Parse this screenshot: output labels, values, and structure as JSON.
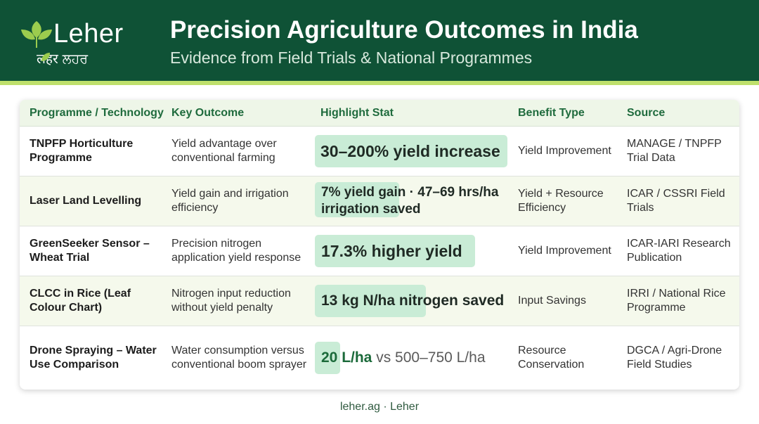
{
  "header": {
    "logo_name": "Leher",
    "logo_sub_left": "लहर",
    "logo_sub_right": "ਲਹਰ",
    "title": "Precision Agriculture Outcomes in India",
    "subtitle": "Evidence from Field Trials & National Programmes",
    "colors": {
      "band": "#0f5236",
      "accent_strip": "#bfe06c",
      "leaf": "#9ccc4e"
    }
  },
  "table": {
    "columns": [
      "Programme / Technology",
      "Key Outcome",
      "Highlight Stat",
      "Benefit Type",
      "Source"
    ],
    "rows": [
      {
        "programme": "TNPFP Horticulture Programme",
        "outcome": "Yield advantage over conventional farming",
        "stat": "30–200% yield increase",
        "benefit": "Yield Improvement",
        "source": "MANAGE / TNPFP Trial Data"
      },
      {
        "programme": "Laser Land Levelling",
        "outcome": "Yield gain and irrigation efficiency",
        "stat": "7% yield gain · 47–69 hrs/ha irrigation saved",
        "benefit": "Yield + Resource Efficiency",
        "source": "ICAR / CSSRI Field Trials"
      },
      {
        "programme": "GreenSeeker Sensor – Wheat Trial",
        "outcome": "Precision nitrogen application yield response",
        "stat": "17.3% higher yield",
        "benefit": "Yield Improvement",
        "source": "ICAR-IARI Research Publication"
      },
      {
        "programme": "CLCC in Rice (Leaf Colour Chart)",
        "outcome": "Nitrogen input reduction without yield penalty",
        "stat": "13 kg N/ha nitrogen saved",
        "benefit": "Input Savings",
        "source": "IRRI / National Rice Programme"
      },
      {
        "programme": "Drone Spraying – Water Use Comparison",
        "outcome": "Water consumption versus conventional boom sprayer",
        "stat_emphasis": "20 L/ha",
        "stat_rest": " vs 500–750 L/ha",
        "benefit": "Resource Conservation",
        "source": "DGCA / Agri-Drone Field Studies"
      }
    ],
    "colors": {
      "header_text": "#1f6b3d",
      "highlight": "#c9ecd6",
      "alt_row": "#f5f9ec"
    }
  },
  "footer": {
    "text": "leher.ag · Leher"
  }
}
